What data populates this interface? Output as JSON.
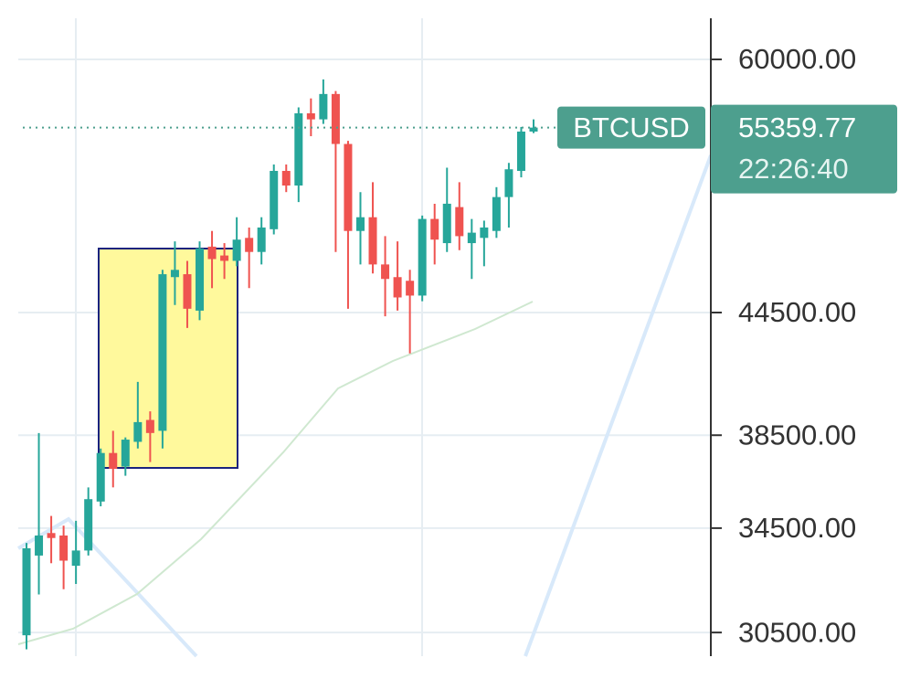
{
  "chart_data": {
    "type": "candlestick",
    "symbol": "BTCUSD",
    "last_price": 55359.77,
    "time": "22:26:40",
    "log_scale": true,
    "grid": true,
    "up_color": "#26a69a",
    "down_color": "#ef5350",
    "label_color": "#4d9f8e",
    "ylim": [
      29660,
      64360
    ],
    "yticks": [
      {
        "value": 60000,
        "label": "60000.00"
      },
      {
        "value": 44500,
        "label": "44500.00"
      },
      {
        "value": 38500,
        "label": "38500.00"
      },
      {
        "value": 34500,
        "label": "34500.00"
      },
      {
        "value": 30500,
        "label": "30500.00"
      }
    ],
    "open": [
      30400,
      33400,
      34300,
      34200,
      33000,
      33600,
      35600,
      37700,
      37100,
      38200,
      39200,
      38700,
      46400,
      46560,
      44600,
      48100,
      47600,
      47300,
      48600,
      47800,
      49100,
      52600,
      51700,
      56300,
      55900,
      57600,
      54300,
      49000,
      49800,
      47100,
      46400,
      46200,
      45400,
      49700,
      48300,
      50400,
      48300,
      48600,
      49000,
      51000,
      52600,
      55100
    ],
    "high": [
      33900,
      38600,
      35000,
      34600,
      34800,
      36200,
      37900,
      38700,
      38400,
      41000,
      39600,
      46800,
      48400,
      47300,
      48400,
      49000,
      48300,
      49800,
      49200,
      49800,
      53000,
      53000,
      56700,
      57300,
      58600,
      57800,
      54500,
      51300,
      51900,
      48700,
      48400,
      46800,
      49900,
      50600,
      52800,
      51900,
      49700,
      49600,
      51600,
      53100,
      55400,
      55900
    ],
    "low": [
      29900,
      31900,
      33100,
      32100,
      32300,
      33400,
      35400,
      36200,
      36700,
      37900,
      37300,
      37900,
      44900,
      43700,
      44100,
      45800,
      46300,
      47000,
      45800,
      47100,
      48800,
      51300,
      50700,
      54800,
      55600,
      47800,
      44700,
      47100,
      46600,
      44300,
      44600,
      42400,
      45100,
      47100,
      47800,
      47900,
      46300,
      47000,
      48600,
      49200,
      52200,
      55000
    ],
    "close": [
      33690,
      34200,
      34100,
      33200,
      33600,
      35700,
      37700,
      37000,
      38300,
      39100,
      38600,
      46560,
      46800,
      44700,
      48000,
      47400,
      47300,
      48500,
      47800,
      49200,
      52600,
      51700,
      56300,
      55900,
      57600,
      54300,
      49000,
      49800,
      47100,
      46300,
      45300,
      45400,
      49700,
      48500,
      50600,
      48700,
      48900,
      49200,
      51000,
      52700,
      55100,
      55360
    ]
  }
}
